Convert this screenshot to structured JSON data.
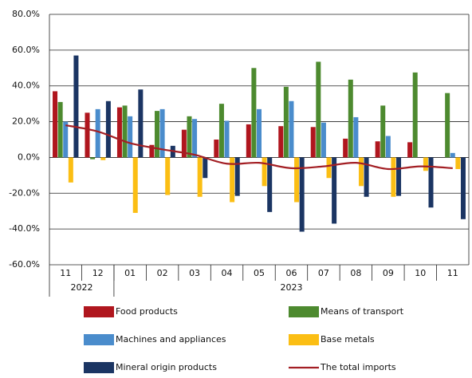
{
  "chart_data": {
    "type": "bar",
    "categories": [
      "11",
      "12",
      "01",
      "02",
      "03",
      "04",
      "05",
      "06",
      "07",
      "08",
      "09",
      "10",
      "11"
    ],
    "year_groups": [
      {
        "label": "2022",
        "count": 2
      },
      {
        "label": "2023",
        "count": 11
      }
    ],
    "series": [
      {
        "name": "Food products",
        "color": "#b0161e",
        "values": [
          37,
          25,
          28,
          7,
          15.5,
          10,
          18.5,
          17.5,
          17,
          10.5,
          9,
          8.5,
          null
        ]
      },
      {
        "name": "Means of transport",
        "color": "#4d8a2f",
        "values": [
          31,
          -1,
          29,
          26,
          23,
          30,
          50,
          39.5,
          53.5,
          43.5,
          29,
          47.5,
          36
        ]
      },
      {
        "name": "Machines and appliances",
        "color": "#4a8ccc",
        "values": [
          20,
          27,
          23,
          27,
          21.5,
          20.5,
          27,
          31.5,
          19.5,
          22.5,
          12,
          null,
          2.5
        ]
      },
      {
        "name": "Base metals",
        "color": "#fbbe14",
        "values": [
          -14,
          -1.5,
          -31,
          -21,
          -22,
          -25,
          -16,
          -25,
          -11.5,
          -16,
          -22,
          -7.5,
          -6.5
        ]
      },
      {
        "name": "Mineral origin products",
        "color": "#1b3563",
        "values": [
          57,
          31.5,
          38,
          6.5,
          -11.5,
          -21.5,
          -30.5,
          -41.5,
          -37,
          -22,
          -21.5,
          -28,
          -34.5
        ]
      },
      {
        "name": "The total imports",
        "color": "#a31f24",
        "type": "line",
        "values": [
          18,
          14.5,
          8,
          4.5,
          1.5,
          -3.5,
          -3,
          -6,
          -5,
          -3,
          -6.5,
          -5,
          -6
        ]
      }
    ],
    "ylim": [
      -60,
      80
    ],
    "yticks": [
      {
        "value": -60,
        "label": "-60.0%"
      },
      {
        "value": -40,
        "label": "-40.0%"
      },
      {
        "value": -20,
        "label": "-20.0%"
      },
      {
        "value": 0,
        "label": "0.0%"
      },
      {
        "value": 20,
        "label": "20.0%"
      },
      {
        "value": 40,
        "label": "40.0%"
      },
      {
        "value": 60,
        "label": "60.0%"
      },
      {
        "value": 80,
        "label": "80.0%"
      }
    ],
    "grid": true
  }
}
